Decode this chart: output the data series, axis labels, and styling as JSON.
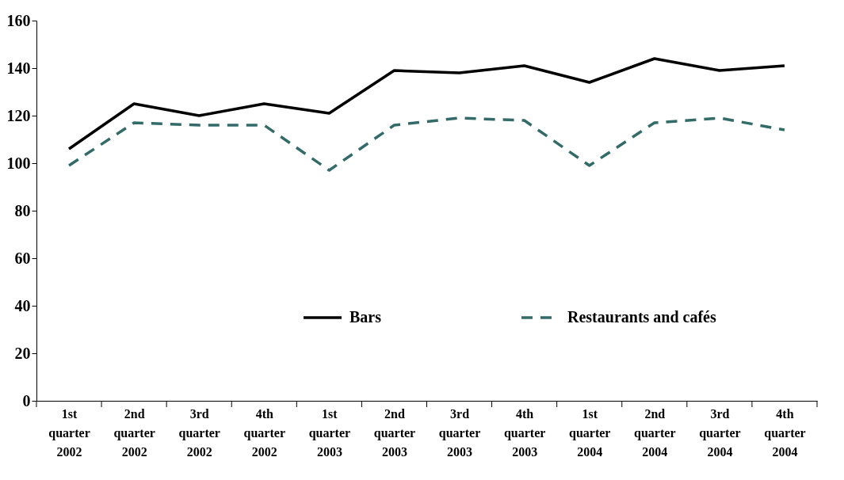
{
  "chart_data": {
    "type": "line",
    "categories": [
      "1st quarter 2002",
      "2nd quarter 2002",
      "3rd quarter 2002",
      "4th quarter 2002",
      "1st quarter 2003",
      "2nd quarter 2003",
      "3rd quarter 2003",
      "4th quarter 2003",
      "1st quarter 2004",
      "2nd quarter 2004",
      "3rd quarter 2004",
      "4th quarter 2004"
    ],
    "series": [
      {
        "name": "Bars",
        "color": "#000000",
        "line_style": "solid",
        "values": [
          106,
          125,
          120,
          125,
          121,
          139,
          138,
          141,
          134,
          144,
          139,
          141
        ]
      },
      {
        "name": "Restaurants and cafés",
        "color": "#336b69",
        "line_style": "dashed",
        "values": [
          99,
          117,
          116,
          116,
          97,
          116,
          119,
          118,
          99,
          117,
          119,
          114
        ]
      }
    ],
    "ylim": [
      0,
      160
    ],
    "yticks": [
      0,
      20,
      40,
      60,
      80,
      100,
      120,
      140,
      160
    ],
    "grid": false,
    "legend": "bottom right",
    "marker": "none"
  }
}
